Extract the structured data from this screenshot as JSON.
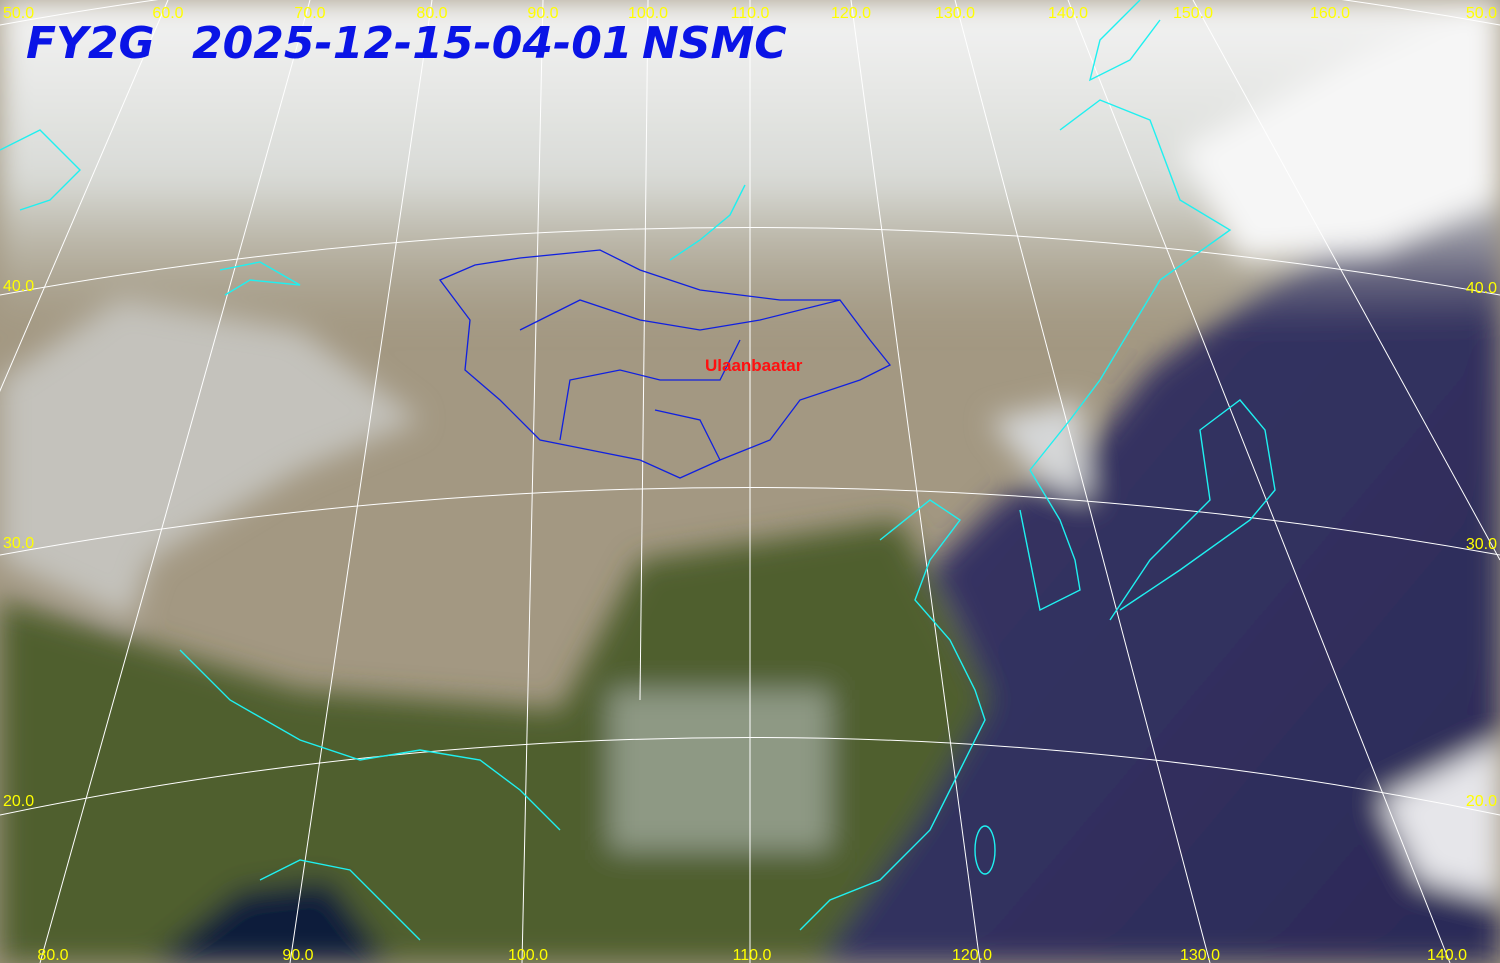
{
  "header": {
    "satellite": "FY2G",
    "timestamp": "2025-12-15-04-01",
    "agency": "NSMC"
  },
  "grid_labels": {
    "top": [
      "50.0",
      "60.0",
      "70.0",
      "80.0",
      "90.0",
      "100.0",
      "110.0",
      "120.0",
      "130.0",
      "140.0",
      "150.0",
      "160.0"
    ],
    "bottom": [
      "80.0",
      "90.0",
      "100.0",
      "110.0",
      "120.0",
      "130.0",
      "140.0"
    ],
    "left": [
      "40.0",
      "30.0",
      "20.0"
    ],
    "right": [
      "50.0",
      "40.0",
      "30.0",
      "20.0"
    ]
  },
  "places": [
    {
      "label": "Ulaanbaatar"
    }
  ]
}
